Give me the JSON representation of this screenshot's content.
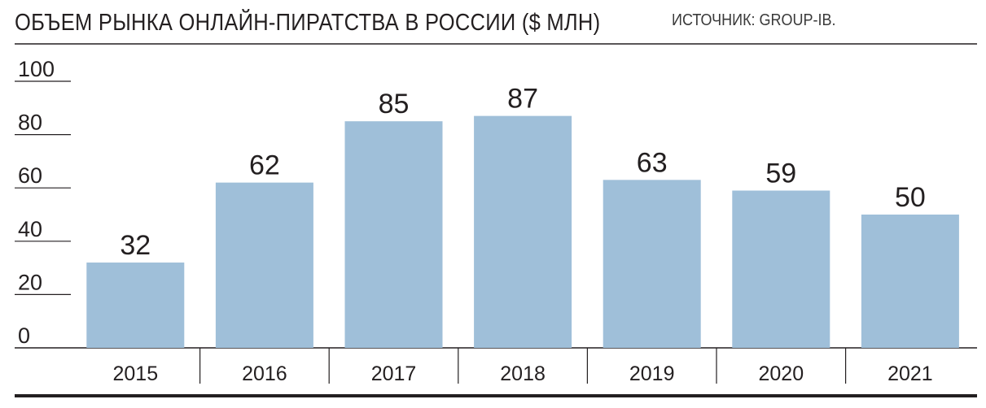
{
  "header": {
    "title": "ОБЪЕМ РЫНКА ОНЛАЙН-ПИРАТСТВА В РОССИИ ($ МЛН)",
    "source": "ИСТОЧНИК: GROUP-IB."
  },
  "colors": {
    "bar": "#9fbfd9",
    "text": "#231f20",
    "rule": "#231f20"
  },
  "chart_data": {
    "type": "bar",
    "title": "ОБЪЕМ РЫНКА ОНЛАЙН-ПИРАТСТВА В РОССИИ ($ МЛН)",
    "categories": [
      "2015",
      "2016",
      "2017",
      "2018",
      "2019",
      "2020",
      "2021"
    ],
    "values": [
      32,
      62,
      85,
      87,
      63,
      59,
      50
    ],
    "data_labels": [
      "32",
      "62",
      "85",
      "87",
      "63",
      "59",
      "50"
    ],
    "y_ticks": [
      "0",
      "20",
      "40",
      "60",
      "80",
      "100"
    ],
    "ylim": [
      0,
      100
    ],
    "grid": false,
    "legend": "none"
  }
}
